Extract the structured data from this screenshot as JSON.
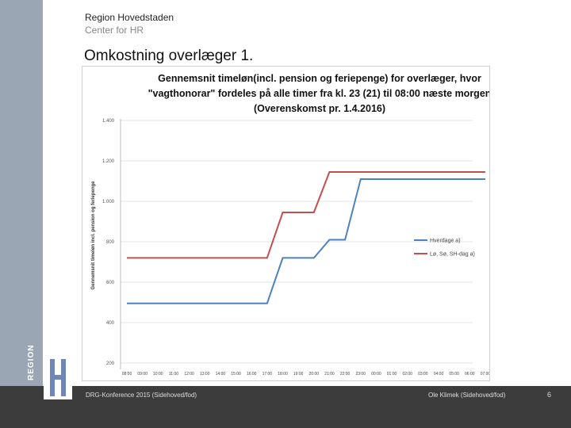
{
  "header": {
    "org_name": "Region Hovedstaden",
    "org_dept": "Center for HR",
    "slide_title": "Omkostning overlæger 1."
  },
  "footer": {
    "left_text": "DRG-Konference 2015 (Sidehoved/fod)",
    "mid_text": "Ole Klimek (Sidehoved/fod)",
    "page_number": "6"
  },
  "logo": {
    "text": "REGION",
    "icon": "region-h-logo-icon"
  },
  "colors": {
    "sidebar": "#9aa6b3",
    "footer": "#3c3c3c",
    "series_weekday": "#4f81bd",
    "series_weekend": "#c0504d"
  },
  "chart_data": {
    "type": "line",
    "title_lines": [
      "Gennemsnit timeløn(incl. pension og feriepenge) for overlæger, hvor",
      "\"vagthonorar\" fordeles på alle timer fra kl. 23 (21) til 08:00 næste morgen",
      "(Overenskomst pr. 1.4.2016)"
    ],
    "ylabel": "Gennemsnit timeløn incl. pension og feriepenge",
    "xlabel": "",
    "ylim": [
      200,
      1400
    ],
    "yticks": [
      200,
      400,
      600,
      800,
      1000,
      1200,
      1400
    ],
    "ytick_labels": [
      "200",
      "400",
      "600",
      "800",
      "1.000",
      "1.200",
      "1.400"
    ],
    "categories": [
      "08:00",
      "09:00",
      "10:00",
      "11:00",
      "12:00",
      "13:00",
      "14:00",
      "15:00",
      "16:00",
      "17:00",
      "18:00",
      "19:00",
      "20:00",
      "21:00",
      "22:00",
      "23:00",
      "00:00",
      "01:00",
      "02:00",
      "03:00",
      "04:00",
      "05:00",
      "06:00",
      "07:00"
    ],
    "grid": true,
    "legend_position": "right",
    "series": [
      {
        "name": "Hverdage a)",
        "color": "#4f81bd",
        "values": [
          495,
          495,
          495,
          495,
          495,
          495,
          495,
          495,
          495,
          495,
          720,
          720,
          720,
          810,
          810,
          1110,
          1110,
          1110,
          1110,
          1110,
          1110,
          1110,
          1110,
          1110
        ]
      },
      {
        "name": "Lø, Sø, SH-dag a)",
        "color": "#c0504d",
        "values": [
          720,
          720,
          720,
          720,
          720,
          720,
          720,
          720,
          720,
          720,
          945,
          945,
          945,
          1145,
          1145,
          1145,
          1145,
          1145,
          1145,
          1145,
          1145,
          1145,
          1145,
          1145
        ]
      }
    ]
  }
}
